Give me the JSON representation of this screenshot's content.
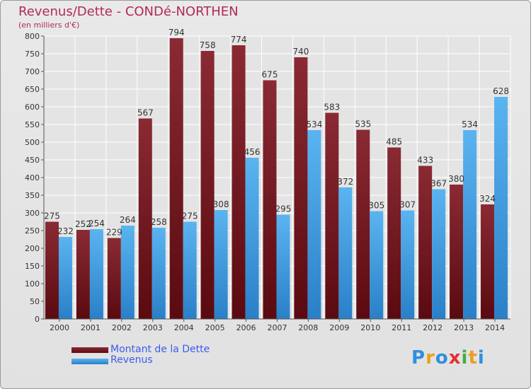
{
  "header": {
    "title": "Revenus/Dette - CONDé-NORTHEN",
    "subtitle": "(en milliers d'€)"
  },
  "chart_data": {
    "type": "bar",
    "categories": [
      "2000",
      "2001",
      "2002",
      "2003",
      "2004",
      "2005",
      "2006",
      "2007",
      "2008",
      "2009",
      "2010",
      "2011",
      "2012",
      "2013",
      "2014"
    ],
    "series": [
      {
        "name": "Montant de la Dette",
        "color": "#7a1a22",
        "values": [
          275,
          252,
          229,
          567,
          794,
          758,
          774,
          675,
          740,
          583,
          535,
          485,
          433,
          380,
          324
        ]
      },
      {
        "name": "Revenus",
        "color": "#4aa3e6",
        "values": [
          232,
          254,
          264,
          258,
          275,
          308,
          456,
          295,
          534,
          372,
          305,
          307,
          367,
          534,
          628
        ]
      }
    ],
    "ylim": [
      0,
      800
    ],
    "yticks": [
      0,
      50,
      100,
      150,
      200,
      250,
      300,
      350,
      400,
      450,
      500,
      550,
      600,
      650,
      700,
      750,
      800
    ],
    "grid": true,
    "legend": "bottom-left"
  },
  "logo": {
    "letters": [
      "P",
      "r",
      "o",
      "x",
      "i",
      "t",
      "i"
    ],
    "colors": [
      "#2f8fe0",
      "#e8a020",
      "#2f8fe0",
      "#e03030",
      "#40b040",
      "#e8a020",
      "#2f8fe0"
    ]
  }
}
